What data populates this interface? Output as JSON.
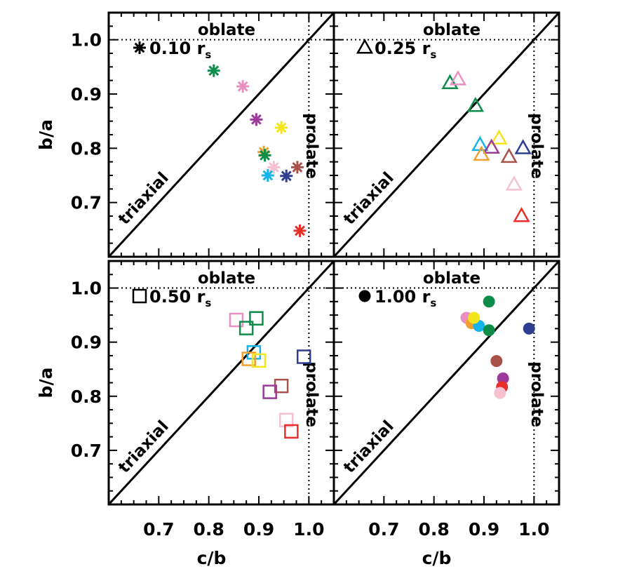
{
  "chart_data": {
    "type": "scatter",
    "xlabel": "c/b",
    "ylabel": "b/a",
    "xlim": [
      0.6,
      1.05
    ],
    "ylim": [
      0.6,
      1.05
    ],
    "x_ticks": [
      "0.7",
      "0.8",
      "0.9",
      "1.0"
    ],
    "y_ticks": [
      "0.7",
      "0.8",
      "0.9",
      "1.0"
    ],
    "grid": false,
    "region_labels": {
      "oblate": "oblate",
      "prolate": "prolate",
      "triaxial": "triaxial"
    },
    "panels": [
      {
        "label": "0.10",
        "label_suffix": "r",
        "label_subscript": "s",
        "marker": "asterisk",
        "points": [
          {
            "x": 0.81,
            "y": 0.943,
            "color": "#0e8c4a"
          },
          {
            "x": 0.868,
            "y": 0.914,
            "color": "#e98fc4"
          },
          {
            "x": 0.895,
            "y": 0.853,
            "color": "#9b3a9b"
          },
          {
            "x": 0.945,
            "y": 0.838,
            "color": "#f2e51b"
          },
          {
            "x": 0.91,
            "y": 0.793,
            "color": "#f0a030"
          },
          {
            "x": 0.912,
            "y": 0.787,
            "color": "#0e8c4a"
          },
          {
            "x": 0.93,
            "y": 0.765,
            "color": "#f5c0cf"
          },
          {
            "x": 0.918,
            "y": 0.75,
            "color": "#14b4ea"
          },
          {
            "x": 0.955,
            "y": 0.749,
            "color": "#2e3e92"
          },
          {
            "x": 0.977,
            "y": 0.765,
            "color": "#a8524a"
          },
          {
            "x": 0.982,
            "y": 0.648,
            "color": "#e8302a"
          }
        ]
      },
      {
        "label": "0.25",
        "label_suffix": "r",
        "label_subscript": "s",
        "marker": "triangle",
        "points": [
          {
            "x": 0.832,
            "y": 0.92,
            "color": "#0e8c4a"
          },
          {
            "x": 0.848,
            "y": 0.927,
            "color": "#e98fc4"
          },
          {
            "x": 0.883,
            "y": 0.878,
            "color": "#0e8c4a"
          },
          {
            "x": 0.93,
            "y": 0.818,
            "color": "#f2e51b"
          },
          {
            "x": 0.892,
            "y": 0.806,
            "color": "#14b4ea"
          },
          {
            "x": 0.915,
            "y": 0.801,
            "color": "#9b3a9b"
          },
          {
            "x": 0.895,
            "y": 0.788,
            "color": "#f0a030"
          },
          {
            "x": 0.95,
            "y": 0.784,
            "color": "#a8524a"
          },
          {
            "x": 0.978,
            "y": 0.8,
            "color": "#2e3e92"
          },
          {
            "x": 0.96,
            "y": 0.733,
            "color": "#f5c0cf"
          },
          {
            "x": 0.975,
            "y": 0.675,
            "color": "#e8302a"
          }
        ]
      },
      {
        "label": "0.50",
        "label_suffix": "r",
        "label_subscript": "s",
        "marker": "square",
        "points": [
          {
            "x": 0.855,
            "y": 0.941,
            "color": "#e98fc4"
          },
          {
            "x": 0.895,
            "y": 0.944,
            "color": "#0e8c4a"
          },
          {
            "x": 0.875,
            "y": 0.926,
            "color": "#0e8c4a"
          },
          {
            "x": 0.89,
            "y": 0.881,
            "color": "#14b4ea"
          },
          {
            "x": 0.88,
            "y": 0.869,
            "color": "#f0a030"
          },
          {
            "x": 0.9,
            "y": 0.866,
            "color": "#f2e51b"
          },
          {
            "x": 0.99,
            "y": 0.873,
            "color": "#2e3e92"
          },
          {
            "x": 0.945,
            "y": 0.819,
            "color": "#a8524a"
          },
          {
            "x": 0.922,
            "y": 0.808,
            "color": "#9b3a9b"
          },
          {
            "x": 0.955,
            "y": 0.756,
            "color": "#f5c0cf"
          },
          {
            "x": 0.965,
            "y": 0.735,
            "color": "#e8302a"
          }
        ]
      },
      {
        "label": "1.00",
        "label_suffix": "r",
        "label_subscript": "s",
        "marker": "circle",
        "points": [
          {
            "x": 0.91,
            "y": 0.975,
            "color": "#0e8c4a"
          },
          {
            "x": 0.865,
            "y": 0.945,
            "color": "#e98fc4"
          },
          {
            "x": 0.875,
            "y": 0.935,
            "color": "#f0a030"
          },
          {
            "x": 0.89,
            "y": 0.93,
            "color": "#14b4ea"
          },
          {
            "x": 0.88,
            "y": 0.945,
            "color": "#f2e51b"
          },
          {
            "x": 0.91,
            "y": 0.922,
            "color": "#0e8c4a"
          },
          {
            "x": 0.99,
            "y": 0.925,
            "color": "#2e3e92"
          },
          {
            "x": 0.925,
            "y": 0.865,
            "color": "#a8524a"
          },
          {
            "x": 0.938,
            "y": 0.833,
            "color": "#9b3a9b"
          },
          {
            "x": 0.936,
            "y": 0.817,
            "color": "#e8302a"
          },
          {
            "x": 0.932,
            "y": 0.806,
            "color": "#f5c0cf"
          }
        ]
      }
    ]
  }
}
